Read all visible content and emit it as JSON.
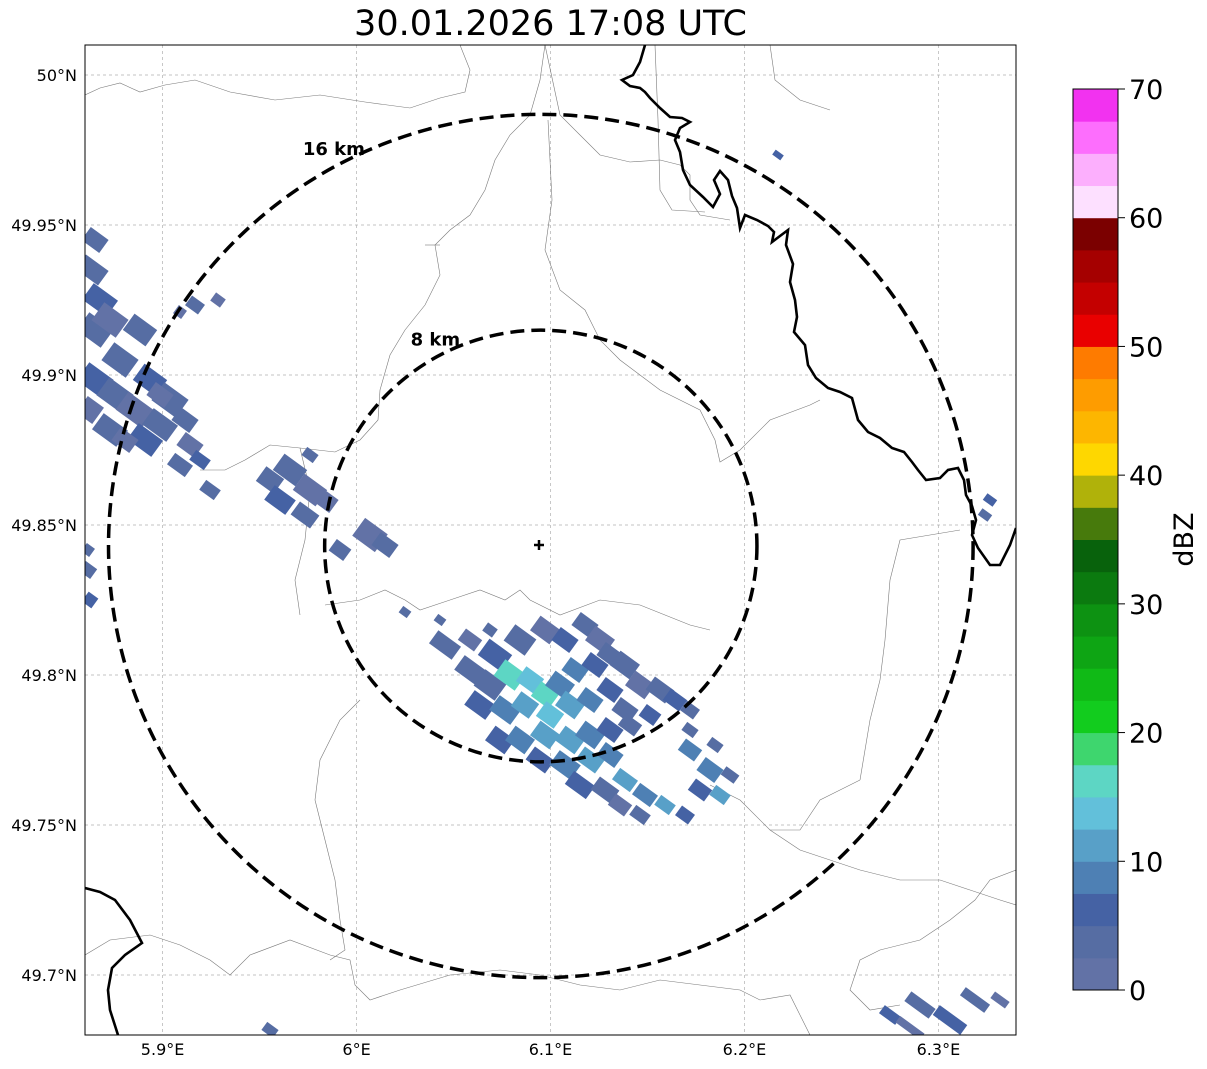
{
  "title": "30.01.2026 17:08 UTC",
  "map": {
    "lon_range": [
      5.86,
      6.34
    ],
    "lat_range": [
      49.68,
      50.01
    ],
    "grid": true,
    "lon_ticks": [
      {
        "value": 5.9,
        "label": "5.9°E"
      },
      {
        "value": 6.0,
        "label": "6°E"
      },
      {
        "value": 6.1,
        "label": "6.1°E"
      },
      {
        "value": 6.2,
        "label": "6.2°E"
      },
      {
        "value": 6.3,
        "label": "6.3°E"
      }
    ],
    "lat_ticks": [
      {
        "value": 49.7,
        "label": "49.7°N"
      },
      {
        "value": 49.75,
        "label": "49.75°N"
      },
      {
        "value": 49.8,
        "label": "49.8°N"
      },
      {
        "value": 49.85,
        "label": "49.85°N"
      },
      {
        "value": 49.9,
        "label": "49.9°N"
      },
      {
        "value": 49.95,
        "label": "49.95°N"
      },
      {
        "value": 50.0,
        "label": "50°N"
      }
    ],
    "radar_site": {
      "lon": 6.095,
      "lat": 49.843
    },
    "range_rings": [
      {
        "radius_km": 8,
        "label": "8 km"
      },
      {
        "radius_km": 16,
        "label": "16 km"
      }
    ]
  },
  "colorbar": {
    "label": "dBZ",
    "range": [
      0,
      70
    ],
    "tick_values": [
      0,
      10,
      20,
      30,
      40,
      50,
      60,
      70
    ],
    "tick_labels": [
      "0",
      "10",
      "20",
      "30",
      "40",
      "50",
      "60",
      "70"
    ],
    "colors": [
      "#6272a6",
      "#566da3",
      "#4562a4",
      "#4e80b4",
      "#58a0c8",
      "#62c0da",
      "#5dd6c4",
      "#3ed66e",
      "#12cc1e",
      "#10ba16",
      "#0ea514",
      "#0d9212",
      "#0b7a0f",
      "#08620c",
      "#477a0c",
      "#b0b20a",
      "#fed700",
      "#fdb600",
      "#fe9c00",
      "#fe7b00",
      "#e90000",
      "#c40000",
      "#a50000",
      "#7b0000",
      "#fde0ff",
      "#fcaffd",
      "#fd6efd",
      "#f232f0"
    ]
  }
}
